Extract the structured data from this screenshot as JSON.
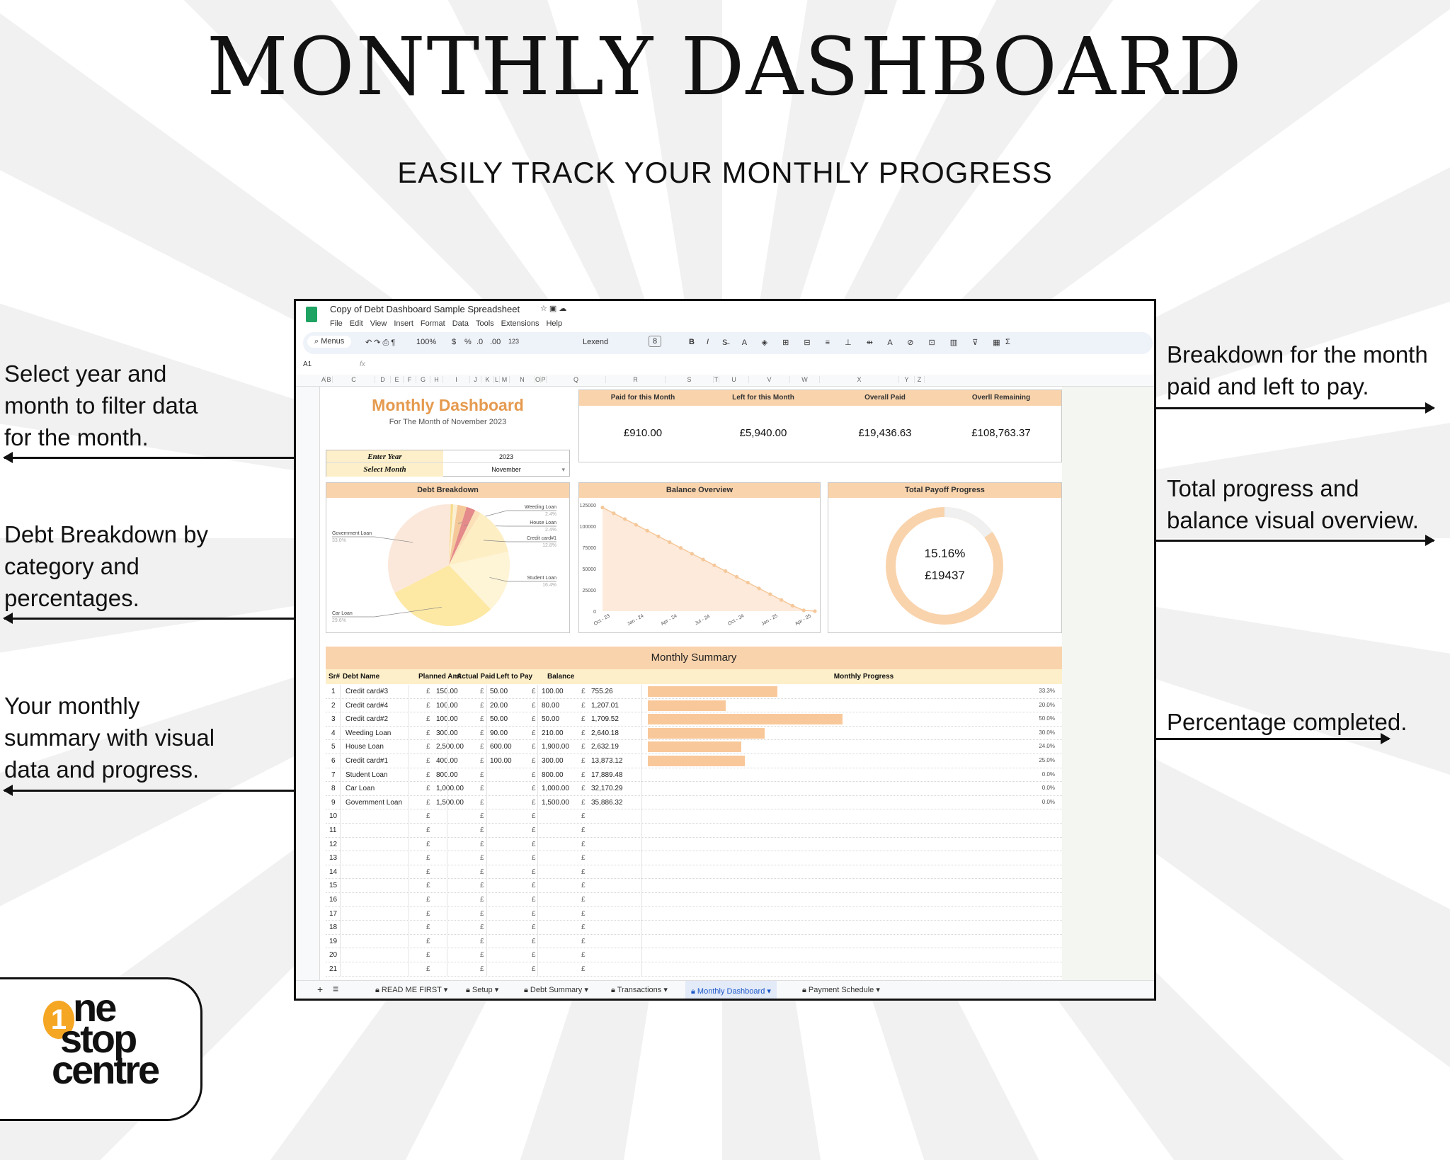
{
  "header": {
    "title": "MONTHLY DASHBOARD",
    "subtitle": "EASILY TRACK YOUR MONTHLY PROGRESS"
  },
  "notes": {
    "left": [
      [
        "Select year and",
        "month to filter data",
        "for the month."
      ],
      [
        "Debt Breakdown by",
        "category and",
        "percentages."
      ],
      [
        "Your monthly",
        "summary with visual",
        "data and progress."
      ]
    ],
    "right": [
      [
        "Breakdown for the month",
        "paid and left to pay."
      ],
      [
        "Total progress and",
        "balance visual overview."
      ],
      [
        "Percentage completed."
      ]
    ]
  },
  "logo": {
    "text1": "ne",
    "text2": "stop",
    "text3": "centre",
    "digit": "1",
    "accent": "#f5a623"
  },
  "sheet": {
    "doc_title": "Copy of Debt Dashboard Sample Spreadsheet",
    "menu": [
      "File",
      "Edit",
      "View",
      "Insert",
      "Format",
      "Data",
      "Tools",
      "Extensions",
      "Help"
    ],
    "toolbar": {
      "search": "Menus",
      "zoom": "100%",
      "currency": "$",
      "percent": "%",
      "dec_less": ".0",
      "dec_more": ".00",
      "fmt": "123",
      "font": "Lexend",
      "font_size": "8",
      "bold": "B",
      "italic": "I",
      "sigma": "Σ"
    },
    "cell_ref": "A1",
    "fx": "fx",
    "columns": [
      "A",
      "B",
      "C",
      "D",
      "E",
      "F",
      "G",
      "H",
      "I",
      "J",
      "K",
      "L",
      "M",
      "N",
      "O",
      "P",
      "Q",
      "R",
      "S",
      "T",
      "U",
      "V",
      "W",
      "X",
      "Y",
      "Z"
    ],
    "dash_title": "Monthly Dashboard",
    "dash_sub": "For The Month of November 2023",
    "year_label": "Enter Year",
    "year_value": "2023",
    "month_label": "Select Month",
    "month_value": "November",
    "kpis": [
      {
        "label": "Paid for this Month",
        "value": "£910.00"
      },
      {
        "label": "Left for this Month",
        "value": "£5,940.00"
      },
      {
        "label": "Overall Paid",
        "value": "£19,436.63"
      },
      {
        "label": "Overll Remaining",
        "value": "£108,763.37"
      }
    ],
    "panels": {
      "debt": "Debt Breakdown",
      "balance": "Balance Overview",
      "payoff": "Total Payoff Progress"
    },
    "payoff": {
      "percent_label": "15.16%",
      "amount_label": "£19437",
      "fraction": 0.1516,
      "color": "#f9d3ac",
      "track": "#f0f0f0"
    },
    "summary": {
      "title": "Monthly Summary",
      "headers": [
        "Sr#",
        "Debt Name",
        "Planned Amt",
        "Actual Paid",
        "Left to Pay",
        "Balance",
        "Monthly Progress"
      ],
      "currency": "£",
      "rows": [
        {
          "sr": "1",
          "name": "Credit card#3",
          "planned": "150.00",
          "paid": "50.00",
          "left": "100.00",
          "balance": "755.26",
          "pct": "33.3%",
          "progress": 33.3
        },
        {
          "sr": "2",
          "name": "Credit card#4",
          "planned": "100.00",
          "paid": "20.00",
          "left": "80.00",
          "balance": "1,207.01",
          "pct": "20.0%",
          "progress": 20
        },
        {
          "sr": "3",
          "name": "Credit card#2",
          "planned": "100.00",
          "paid": "50.00",
          "left": "50.00",
          "balance": "1,709.52",
          "pct": "50.0%",
          "progress": 50
        },
        {
          "sr": "4",
          "name": "Weeding Loan",
          "planned": "300.00",
          "paid": "90.00",
          "left": "210.00",
          "balance": "2,640.18",
          "pct": "30.0%",
          "progress": 30
        },
        {
          "sr": "5",
          "name": "House Loan",
          "planned": "2,500.00",
          "paid": "600.00",
          "left": "1,900.00",
          "balance": "2,632.19",
          "pct": "24.0%",
          "progress": 24
        },
        {
          "sr": "6",
          "name": "Credit card#1",
          "planned": "400.00",
          "paid": "100.00",
          "left": "300.00",
          "balance": "13,873.12",
          "pct": "25.0%",
          "progress": 25
        },
        {
          "sr": "7",
          "name": "Student Loan",
          "planned": "800.00",
          "paid": "",
          "left": "800.00",
          "balance": "17,889.48",
          "pct": "0.0%",
          "progress": 0
        },
        {
          "sr": "8",
          "name": "Car Loan",
          "planned": "1,000.00",
          "paid": "",
          "left": "1,000.00",
          "balance": "32,170.29",
          "pct": "0.0%",
          "progress": 0
        },
        {
          "sr": "9",
          "name": "Government Loan",
          "planned": "1,500.00",
          "paid": "",
          "left": "1,500.00",
          "balance": "35,886.32",
          "pct": "0.0%",
          "progress": 0
        },
        {
          "sr": "10"
        },
        {
          "sr": "11"
        },
        {
          "sr": "12"
        },
        {
          "sr": "13"
        },
        {
          "sr": "14"
        },
        {
          "sr": "15"
        },
        {
          "sr": "16"
        },
        {
          "sr": "17"
        },
        {
          "sr": "18"
        },
        {
          "sr": "19"
        },
        {
          "sr": "20"
        },
        {
          "sr": "21"
        }
      ],
      "bar_color": "#f9c89a"
    },
    "tabs": [
      {
        "label": "READ ME FIRST"
      },
      {
        "label": "Setup"
      },
      {
        "label": "Debt Summary"
      },
      {
        "label": "Transactions"
      },
      {
        "label": "Monthly Dashboard",
        "active": true
      },
      {
        "label": "Payment Schedule"
      }
    ]
  },
  "chart_data": [
    {
      "type": "pie",
      "title": "Debt Breakdown",
      "slices": [
        {
          "name": "Credit card#3",
          "value": 755.26,
          "color": "#f7dc8a"
        },
        {
          "name": "Credit card#4",
          "value": 1207.01,
          "color": "#fbf0d2"
        },
        {
          "name": "Weeding Loan",
          "value": 2640.18,
          "label": "Weeding Loan",
          "pct": "2.4%",
          "color": "#f5c89a"
        },
        {
          "name": "House Loan",
          "value": 2632.19,
          "label": "House Loan",
          "pct": "2.4%",
          "color": "#e48a8a"
        },
        {
          "name": "Credit card#2",
          "value": 1709.52,
          "color": "#fbe0b8"
        },
        {
          "name": "Credit card#1",
          "value": 13873.12,
          "label": "Credit card#1",
          "pct": "12.8%",
          "color": "#fdeec4"
        },
        {
          "name": "Student Loan",
          "value": 17889.48,
          "label": "Student Loan",
          "pct": "16.4%",
          "color": "#fef4d6"
        },
        {
          "name": "Car Loan",
          "value": 32170.29,
          "label": "Car Loan",
          "pct": "29.6%",
          "color": "#fde8a4"
        },
        {
          "name": "Government Loan",
          "value": 35886.32,
          "label": "Government Loan",
          "pct": "33.0%",
          "color": "#fbe8db"
        }
      ]
    },
    {
      "type": "area",
      "title": "Balance Overview",
      "ylim": [
        0,
        125000
      ],
      "yticks": [
        "125000",
        "100000",
        "75000",
        "50000",
        "25000",
        "0"
      ],
      "xticks": [
        "Oct - 23",
        "Jan - 24",
        "Apr - 24",
        "Jul - 24",
        "Oct - 24",
        "Jan - 25",
        "Apr - 25"
      ],
      "values": [
        122000,
        115200,
        108400,
        101600,
        94800,
        88000,
        81200,
        74400,
        67600,
        60800,
        54000,
        47200,
        40400,
        33600,
        26800,
        20000,
        13200,
        6400,
        1000,
        0
      ],
      "color": "#f5c89a",
      "fill": "#fdeadb"
    }
  ]
}
